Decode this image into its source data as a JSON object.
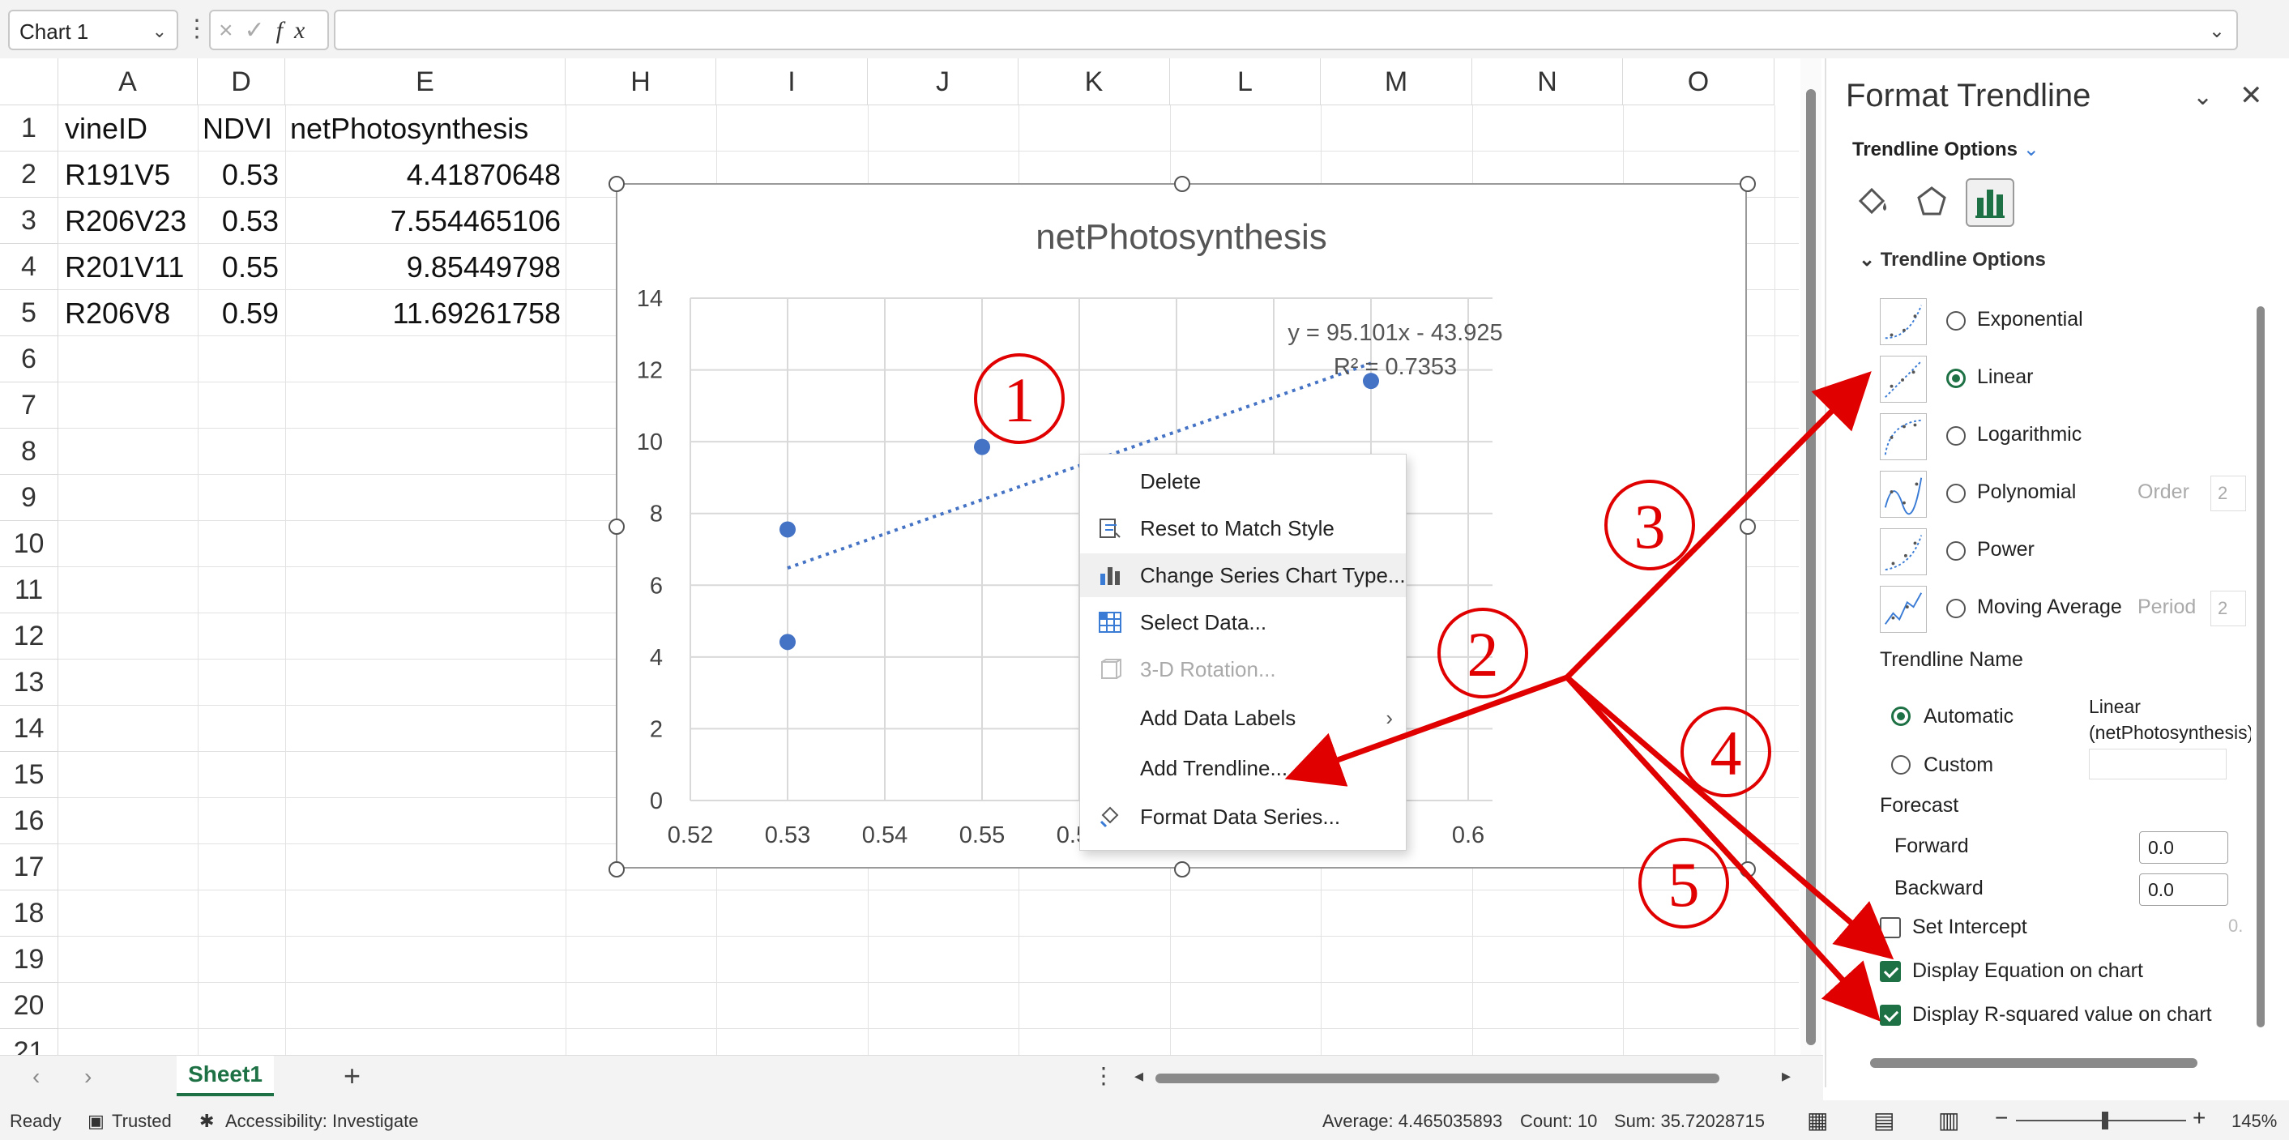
{
  "formula_bar": {
    "name_box": "Chart 1",
    "fx": "fx",
    "cancel_icon": "×",
    "enter_icon": "✓",
    "formula": ""
  },
  "grid": {
    "columns": [
      "A",
      "D",
      "E",
      "H",
      "I",
      "J",
      "K",
      "L",
      "M",
      "N",
      "O"
    ],
    "rows": [
      "1",
      "2",
      "3",
      "4",
      "5",
      "6",
      "7",
      "8",
      "9",
      "10",
      "11",
      "12",
      "13",
      "14",
      "15",
      "16",
      "17",
      "18",
      "19",
      "20",
      "21"
    ],
    "header_row": {
      "a": "vineID",
      "d": "NDVI",
      "e": "netPhotosynthesis"
    },
    "data_rows": [
      {
        "a": "R191V5",
        "d": "0.53",
        "e": "4.41870648"
      },
      {
        "a": "R206V23",
        "d": "0.53",
        "e": "7.554465106"
      },
      {
        "a": "R201V11",
        "d": "0.55",
        "e": "9.85449798"
      },
      {
        "a": "R206V8",
        "d": "0.59",
        "e": "11.69261758"
      }
    ]
  },
  "chart_data": {
    "type": "scatter",
    "title": "netPhotosynthesis",
    "x": [
      0.53,
      0.53,
      0.55,
      0.59
    ],
    "y": [
      4.41870648,
      7.554465106,
      9.85449798,
      11.69261758
    ],
    "xlim": [
      0.52,
      0.6
    ],
    "ylim": [
      0,
      14
    ],
    "x_ticks": [
      "0.52",
      "0.53",
      "0.54",
      "0.55",
      "0.56",
      "0.57",
      "0.58",
      "0.59",
      "0.6"
    ],
    "y_ticks": [
      "0",
      "2",
      "4",
      "6",
      "8",
      "10",
      "12",
      "14"
    ],
    "trendline": {
      "type": "linear",
      "slope": 95.101,
      "intercept": -43.925,
      "style": "dotted"
    },
    "equation_label": "y = 95.101x - 43.925",
    "r2_label": "R² = 0.7353",
    "grid": true,
    "marker_color": "#4472c4"
  },
  "context_menu": {
    "items": [
      {
        "label": "Delete",
        "icon": "",
        "enabled": true
      },
      {
        "label": "Reset to Match Style",
        "icon": "reset-style-icon",
        "enabled": true
      },
      {
        "label": "Change Series Chart Type...",
        "icon": "bar-chart-icon",
        "enabled": true
      },
      {
        "label": "Select Data...",
        "icon": "select-data-icon",
        "enabled": true
      },
      {
        "label": "3-D Rotation...",
        "icon": "rotation-icon",
        "enabled": false
      },
      {
        "label": "Add Data Labels",
        "icon": "",
        "enabled": true,
        "submenu": "›"
      },
      {
        "label": "Add Trendline...",
        "icon": "",
        "enabled": true
      },
      {
        "label": "Format Data Series...",
        "icon": "paint-bucket-icon",
        "enabled": true
      }
    ]
  },
  "annotations": {
    "labels": [
      "1",
      "2",
      "3",
      "4",
      "5"
    ],
    "color": "#e00000"
  },
  "format_pane": {
    "title": "Format Trendline",
    "options_label": "Trendline Options",
    "options_chev": "⌄",
    "section_header": "Trendline Options",
    "trend_types": [
      {
        "label": "Exponential",
        "selected": false
      },
      {
        "label": "Linear",
        "selected": true
      },
      {
        "label": "Logarithmic",
        "selected": false
      },
      {
        "label": "Polynomial",
        "selected": false,
        "aux_label": "Order",
        "aux_value": "2"
      },
      {
        "label": "Power",
        "selected": false
      },
      {
        "label": "Moving Average",
        "selected": false,
        "aux_label": "Period",
        "aux_value": "2"
      }
    ],
    "trendline_name_label": "Trendline Name",
    "automatic_label": "Automatic",
    "automatic_value": "Linear (netPhotosynthesis)",
    "custom_label": "Custom",
    "forecast_label": "Forecast",
    "forward_label": "Forward",
    "forward_value": "0.0",
    "backward_label": "Backward",
    "backward_value": "0.0",
    "set_intercept_label": "Set Intercept",
    "set_intercept_value": "0.",
    "display_equation_label": "Display Equation on chart",
    "display_equation_checked": true,
    "display_r2_label": "Display R-squared value on chart",
    "display_r2_checked": true,
    "accent": "#1e7145"
  },
  "sheet_tabs": {
    "active": "Sheet1",
    "add": "+"
  },
  "status_bar": {
    "ready": "Ready",
    "trusted": "Trusted",
    "accessibility": "Accessibility: Investigate",
    "average": "Average: 4.465035893",
    "count": "Count: 10",
    "sum": "Sum: 35.72028715",
    "zoom": "145%"
  }
}
